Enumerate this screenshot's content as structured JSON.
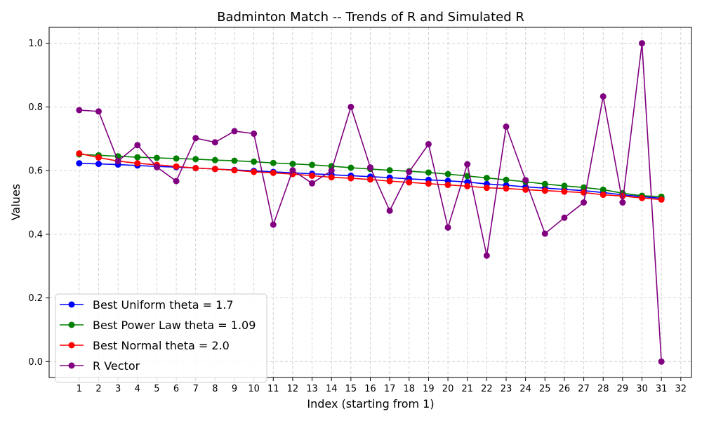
{
  "chart_data": {
    "type": "line",
    "title": "Badminton Match -- Trends of R and Simulated R",
    "xlabel": "Index (starting from 1)",
    "ylabel": "Values",
    "x": [
      1,
      2,
      3,
      4,
      5,
      6,
      7,
      8,
      9,
      10,
      11,
      12,
      13,
      14,
      15,
      16,
      17,
      18,
      19,
      20,
      21,
      22,
      23,
      24,
      25,
      26,
      27,
      28,
      29,
      30,
      31
    ],
    "x_ticks": [
      1,
      2,
      3,
      4,
      5,
      6,
      7,
      8,
      9,
      10,
      11,
      12,
      13,
      14,
      15,
      16,
      17,
      18,
      19,
      20,
      21,
      22,
      23,
      24,
      25,
      26,
      27,
      28,
      29,
      30,
      31,
      32
    ],
    "y_ticks": [
      0.0,
      0.2,
      0.4,
      0.6,
      0.8,
      1.0
    ],
    "y_tick_labels": [
      "0.0",
      "0.2",
      "0.4",
      "0.6",
      "0.8",
      "1.0"
    ],
    "xlim": [
      -0.55,
      32.55
    ],
    "ylim": [
      -0.05,
      1.05
    ],
    "grid": true,
    "legend_position": "lower-left",
    "series": [
      {
        "name": "Best Uniform theta = 1.7",
        "color": "#0000ff",
        "values": [
          0.623,
          0.621,
          0.619,
          0.616,
          0.613,
          0.611,
          0.608,
          0.605,
          0.602,
          0.599,
          0.596,
          0.593,
          0.59,
          0.587,
          0.584,
          0.581,
          0.578,
          0.574,
          0.571,
          0.568,
          0.564,
          0.558,
          0.554,
          0.549,
          0.545,
          0.541,
          0.537,
          0.531,
          0.524,
          0.518,
          0.513
        ]
      },
      {
        "name": "Best Power Law theta = 1.09",
        "color": "#008000",
        "values": [
          0.651,
          0.648,
          0.645,
          0.642,
          0.64,
          0.638,
          0.636,
          0.633,
          0.631,
          0.628,
          0.624,
          0.621,
          0.618,
          0.614,
          0.609,
          0.605,
          0.601,
          0.598,
          0.594,
          0.589,
          0.583,
          0.577,
          0.571,
          0.565,
          0.558,
          0.552,
          0.547,
          0.54,
          0.529,
          0.521,
          0.518
        ]
      },
      {
        "name": "Best Normal theta = 2.0",
        "color": "#ff0000",
        "values": [
          0.654,
          0.641,
          0.63,
          0.623,
          0.618,
          0.613,
          0.608,
          0.605,
          0.601,
          0.596,
          0.593,
          0.589,
          0.584,
          0.579,
          0.576,
          0.572,
          0.567,
          0.563,
          0.559,
          0.555,
          0.551,
          0.546,
          0.544,
          0.54,
          0.537,
          0.534,
          0.531,
          0.524,
          0.52,
          0.514,
          0.509
        ]
      },
      {
        "name": "R Vector",
        "color": "#800080",
        "values": [
          0.79,
          0.786,
          0.63,
          0.68,
          0.611,
          0.567,
          0.702,
          0.689,
          0.724,
          0.716,
          0.43,
          0.601,
          0.56,
          0.6,
          0.8,
          0.61,
          0.474,
          0.596,
          0.683,
          0.421,
          0.62,
          0.333,
          0.738,
          0.57,
          0.402,
          0.452,
          0.5,
          0.833,
          0.5,
          1.0,
          0.0
        ]
      }
    ]
  }
}
